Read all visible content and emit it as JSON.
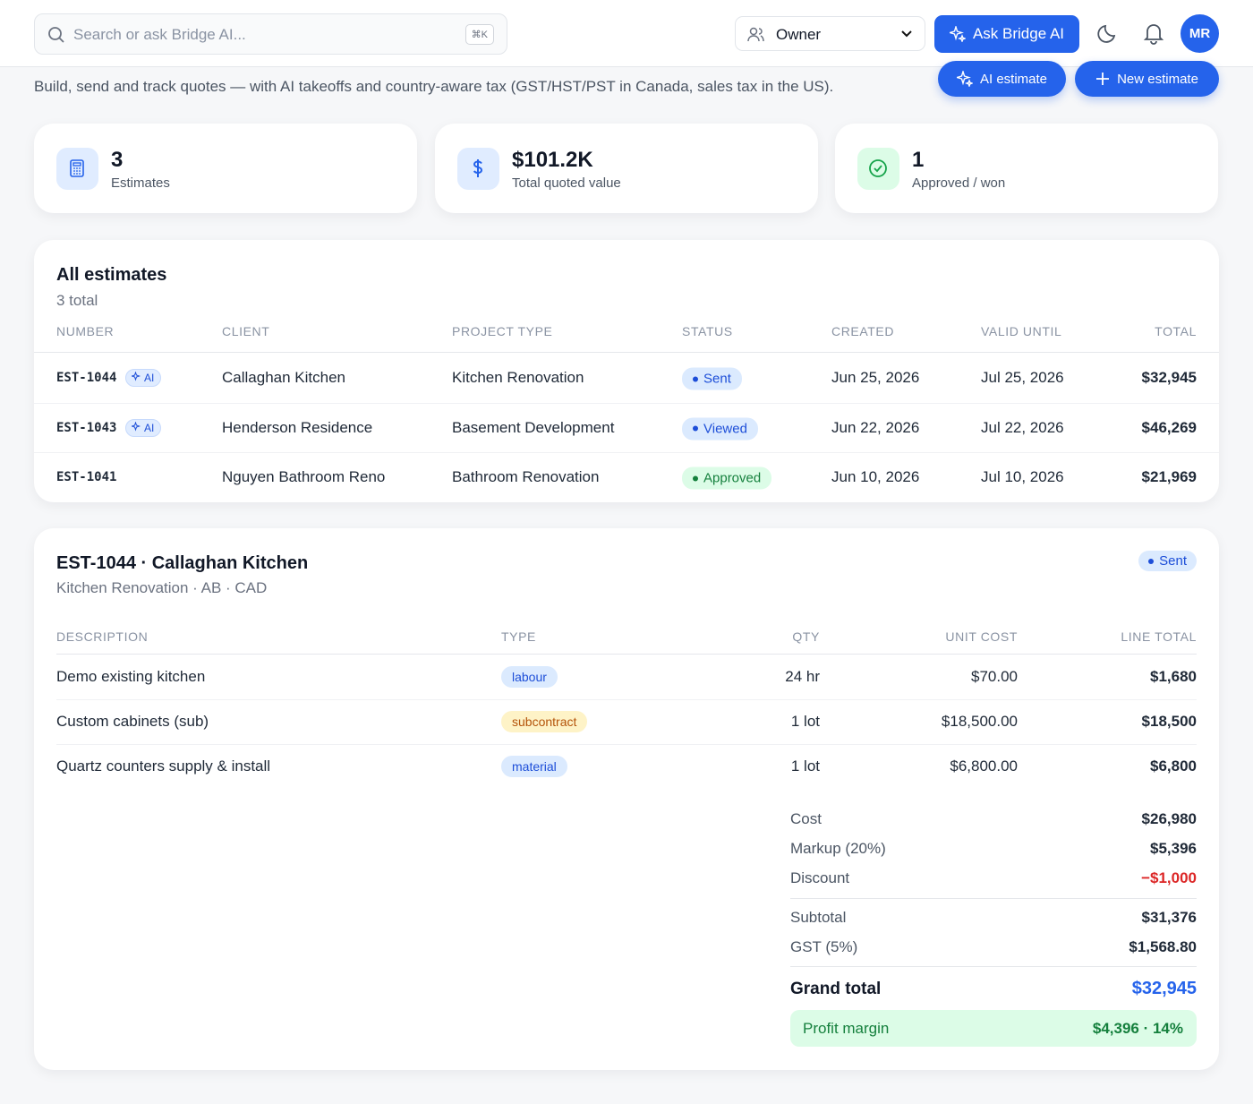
{
  "topbar": {
    "search_placeholder": "Search or ask Bridge AI...",
    "shortcut": "⌘K",
    "role": "Owner",
    "ask_button": "Ask Bridge AI",
    "avatar": "MR"
  },
  "header": {
    "subtitle": "Build, send and track quotes — with AI takeoffs and country-aware tax (GST/HST/PST in Canada, sales tax in the US).",
    "ai_estimate": "AI estimate",
    "new_estimate": "New estimate"
  },
  "stats": [
    {
      "value": "3",
      "label": "Estimates",
      "color": "#2563eb",
      "bg": "#e0ecff"
    },
    {
      "value": "$101.2K",
      "label": "Total quoted value",
      "color": "#2563eb",
      "bg": "#e0ecff"
    },
    {
      "value": "1",
      "label": "Approved / won",
      "color": "#16a34a",
      "bg": "#dcfce7"
    }
  ],
  "estimates": {
    "title": "All estimates",
    "count": "3 total",
    "columns": [
      "NUMBER",
      "CLIENT",
      "PROJECT TYPE",
      "STATUS",
      "CREATED",
      "VALID UNTIL",
      "TOTAL"
    ],
    "rows": [
      {
        "number": "EST-1044",
        "ai": "AI",
        "client": "Callaghan Kitchen",
        "project_type": "Kitchen Renovation",
        "status": "Sent",
        "status_color": "#1d4ed8",
        "status_bg": "#dbeafe",
        "created": "Jun 25, 2026",
        "valid_until": "Jul 25, 2026",
        "total": "$32,945"
      },
      {
        "number": "EST-1043",
        "ai": "AI",
        "client": "Henderson Residence",
        "project_type": "Basement Development",
        "status": "Viewed",
        "status_color": "#1d4ed8",
        "status_bg": "#dbeafe",
        "created": "Jun 22, 2026",
        "valid_until": "Jul 22, 2026",
        "total": "$46,269"
      },
      {
        "number": "EST-1041",
        "client": "Nguyen Bathroom Reno",
        "project_type": "Bathroom Renovation",
        "status": "Approved",
        "status_color": "#15803d",
        "status_bg": "#dcfce7",
        "created": "Jun 10, 2026",
        "valid_until": "Jul 10, 2026",
        "total": "$21,969"
      }
    ]
  },
  "detail": {
    "title": "EST-1044 · Callaghan Kitchen",
    "subtitle": "Kitchen Renovation · AB · CAD",
    "status": "Sent",
    "status_color": "#1d4ed8",
    "status_bg": "#dbeafe",
    "columns": [
      "DESCRIPTION",
      "TYPE",
      "QTY",
      "UNIT COST",
      "LINE TOTAL"
    ],
    "items": [
      {
        "description": "Demo existing kitchen",
        "type": "labour",
        "type_color": "#1d4ed8",
        "type_bg": "#dbeafe",
        "qty": "24 hr",
        "unit_cost": "$70.00",
        "line_total": "$1,680"
      },
      {
        "description": "Custom cabinets (sub)",
        "type": "subcontract",
        "type_color": "#b45309",
        "type_bg": "#fef3c7",
        "qty": "1 lot",
        "unit_cost": "$18,500.00",
        "line_total": "$18,500"
      },
      {
        "description": "Quartz counters supply & install",
        "type": "material",
        "type_color": "#1d4ed8",
        "type_bg": "#dbeafe",
        "qty": "1 lot",
        "unit_cost": "$6,800.00",
        "line_total": "$6,800"
      }
    ],
    "summary": [
      {
        "label": "Cost",
        "value": "$26,980"
      },
      {
        "label": "Markup (20%)",
        "value": "$5,396"
      },
      {
        "label": "Discount",
        "value": "−$1,000",
        "color": "#dc2626"
      },
      {
        "label": "Subtotal",
        "value": "$31,376"
      },
      {
        "label": "GST (5%)",
        "value": "$1,568.80"
      }
    ],
    "grand_total": {
      "label": "Grand total",
      "value": "$32,945"
    },
    "profit_margin": {
      "label": "Profit margin",
      "value": "$4,396 · 14%"
    }
  }
}
